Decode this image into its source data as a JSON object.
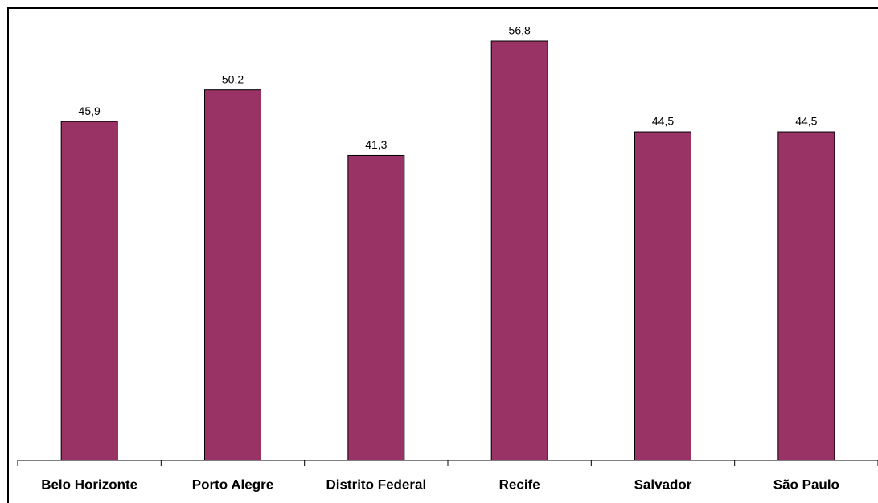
{
  "chart_data": {
    "type": "bar",
    "categories": [
      "Belo Horizonte",
      "Porto Alegre",
      "Distrito Federal",
      "Recife",
      "Salvador",
      "São Paulo"
    ],
    "values": [
      45.9,
      50.2,
      41.3,
      56.8,
      44.5,
      44.5
    ],
    "value_labels": [
      "45,9",
      "50,2",
      "41,3",
      "56,8",
      "44,5",
      "44,5"
    ],
    "color": "#993366",
    "ylim": [
      0,
      60
    ]
  }
}
